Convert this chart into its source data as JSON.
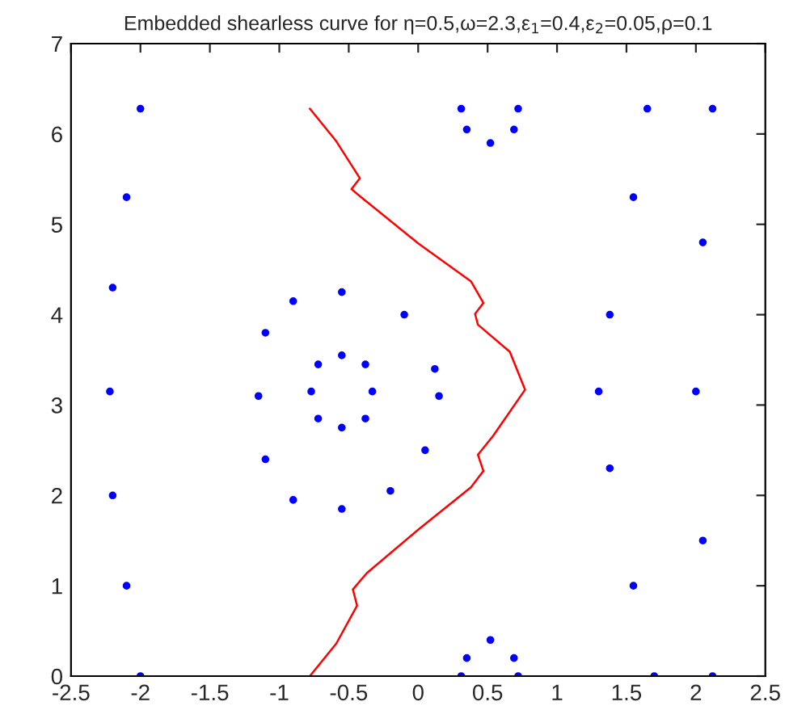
{
  "chart_data": {
    "type": "line",
    "title": "Embedded shearless curve for η=0.5,ω=2.3,ε$_{1}$=0.4,ε$_{2}$=0.05,ρ=0.1",
    "xlim": [
      -2.5,
      2.5
    ],
    "ylim": [
      0,
      7
    ],
    "xticks": [
      -2.5,
      -2,
      -1.5,
      -1,
      -0.5,
      0,
      0.5,
      1,
      1.5,
      2,
      2.5
    ],
    "yticks": [
      0,
      1,
      2,
      3,
      4,
      5,
      6,
      7
    ],
    "grid": false,
    "legend": false,
    "line_style": "solid",
    "series": [
      {
        "type": "scatter",
        "marker": "circle",
        "color": "#0000ff",
        "x": [
          -0.55,
          -0.38,
          -0.33,
          -0.38,
          -0.55,
          -0.72,
          -0.77,
          -0.72
        ],
        "values": [
          3.55,
          3.45,
          3.15,
          2.85,
          2.75,
          2.85,
          3.15,
          3.45
        ]
      },
      {
        "type": "scatter",
        "marker": "circle",
        "color": "#0000ff",
        "x": [
          -0.55,
          -0.1,
          0.12,
          0.15,
          0.05,
          -0.2,
          -0.55,
          -0.9,
          -1.1,
          -1.15,
          -1.1,
          -0.9
        ],
        "values": [
          4.25,
          4.0,
          3.4,
          3.1,
          2.5,
          2.05,
          1.85,
          1.95,
          2.4,
          3.1,
          3.8,
          4.15
        ]
      },
      {
        "type": "scatter",
        "marker": "circle",
        "color": "#0000ff",
        "x": [
          -2.0,
          -2.1,
          -2.2,
          -2.22,
          -2.2,
          -2.1,
          -2.0
        ],
        "values": [
          0,
          1,
          2,
          3.15,
          4.3,
          5.3,
          6.28
        ]
      },
      {
        "type": "scatter",
        "marker": "circle",
        "color": "#0000ff",
        "x": [
          1.7,
          1.55,
          1.38,
          1.3,
          1.38,
          1.55,
          1.65
        ],
        "values": [
          0,
          1,
          2.3,
          3.15,
          4,
          5.3,
          6.28
        ]
      },
      {
        "type": "scatter",
        "marker": "circle",
        "color": "#0000ff",
        "x": [
          2.12,
          2.05,
          2.0,
          2.05,
          2.12
        ],
        "values": [
          0,
          1.5,
          3.15,
          4.8,
          6.28
        ]
      },
      {
        "type": "scatter",
        "marker": "circle",
        "color": "#0000ff",
        "x": [
          0.31,
          0.35,
          0.52,
          0.69,
          0.72
        ],
        "values": [
          6.28,
          6.05,
          5.9,
          6.05,
          6.28
        ]
      },
      {
        "type": "scatter",
        "marker": "circle",
        "color": "#0000ff",
        "x": [
          0.31,
          0.35,
          0.52,
          0.69,
          0.72
        ],
        "values": [
          0,
          0.2,
          0.4,
          0.2,
          0
        ]
      },
      {
        "color": "#ff0000",
        "x": [
          -0.78,
          -0.59,
          -0.44,
          -0.47,
          -0.37,
          0.0,
          0.38,
          0.47,
          0.43,
          0.54,
          0.77,
          0.66,
          0.43,
          0.41,
          0.47,
          0.38,
          0.0,
          -0.41,
          -0.48,
          -0.42,
          -0.59,
          -0.78
        ],
        "values": [
          0,
          0.36,
          0.78,
          0.96,
          1.14,
          1.62,
          2.09,
          2.27,
          2.45,
          2.66,
          3.17,
          3.59,
          3.89,
          4.01,
          4.13,
          4.37,
          4.79,
          5.3,
          5.39,
          5.51,
          5.92,
          6.28
        ]
      }
    ]
  }
}
